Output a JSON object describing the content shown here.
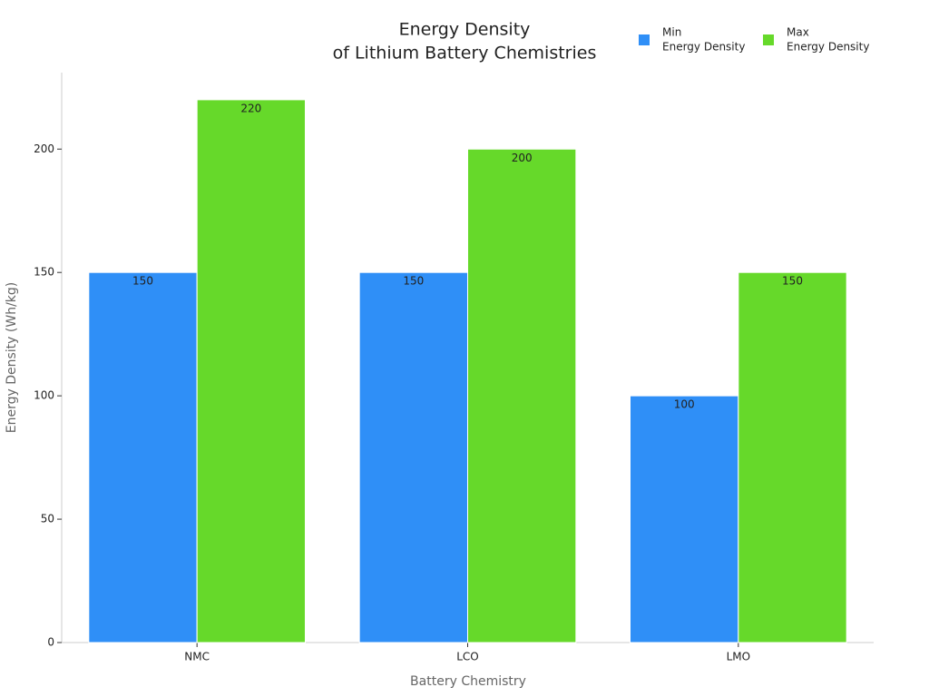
{
  "chart_data": {
    "type": "bar",
    "title": [
      "Energy Density",
      "of Lithium Battery Chemistries"
    ],
    "x_label": "Battery Chemistry",
    "y_label": "Energy Density (Wh/kg)",
    "categories": [
      "NMC",
      "LCO",
      "LMO"
    ],
    "series": [
      {
        "name": [
          "Min",
          "Energy Density"
        ],
        "color": "#2f8ff7",
        "values": [
          150,
          150,
          100
        ]
      },
      {
        "name": [
          "Max",
          "Energy Density"
        ],
        "color": "#66d92a",
        "values": [
          220,
          200,
          150
        ]
      }
    ],
    "ylim": [
      0,
      231
    ],
    "yticks": [
      0,
      50,
      100,
      150,
      200
    ],
    "grid": false,
    "legend": "top-right"
  }
}
